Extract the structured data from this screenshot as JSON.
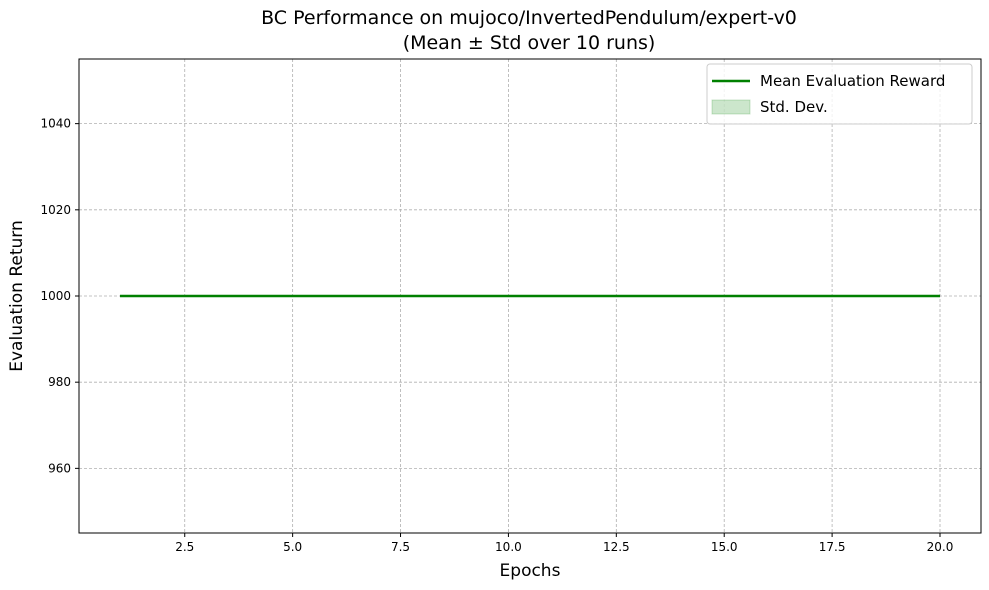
{
  "chart_data": {
    "type": "line",
    "title": "BC Performance on mujoco/InvertedPendulum/expert-v0",
    "subtitle": "(Mean ± Std over 10 runs)",
    "xlabel": "Epochs",
    "ylabel": "Evaluation Return",
    "xlim": [
      0.05,
      20.95
    ],
    "ylim": [
      945,
      1055
    ],
    "x_ticks": [
      2.5,
      5.0,
      7.5,
      10.0,
      12.5,
      15.0,
      17.5,
      20.0
    ],
    "x_tick_labels": [
      "2.5",
      "5.0",
      "7.5",
      "10.0",
      "12.5",
      "15.0",
      "17.5",
      "20.0"
    ],
    "y_ticks": [
      960,
      980,
      1000,
      1020,
      1040
    ],
    "y_tick_labels": [
      "960",
      "980",
      "1000",
      "1020",
      "1040"
    ],
    "grid": true,
    "legend_position": "top-right",
    "series": [
      {
        "name": "Mean Evaluation Reward",
        "color": "#008000",
        "x": [
          1,
          2,
          3,
          4,
          5,
          6,
          7,
          8,
          9,
          10,
          11,
          12,
          13,
          14,
          15,
          16,
          17,
          18,
          19,
          20
        ],
        "values": [
          1000,
          1000,
          1000,
          1000,
          1000,
          1000,
          1000,
          1000,
          1000,
          1000,
          1000,
          1000,
          1000,
          1000,
          1000,
          1000,
          1000,
          1000,
          1000,
          1000
        ]
      }
    ],
    "band": {
      "name": "Std. Dev.",
      "color": "#008000",
      "x": [
        1,
        2,
        3,
        4,
        5,
        6,
        7,
        8,
        9,
        10,
        11,
        12,
        13,
        14,
        15,
        16,
        17,
        18,
        19,
        20
      ],
      "lower": [
        1000,
        1000,
        1000,
        1000,
        1000,
        1000,
        1000,
        1000,
        1000,
        1000,
        1000,
        1000,
        1000,
        1000,
        1000,
        1000,
        1000,
        1000,
        1000,
        1000
      ],
      "upper": [
        1000,
        1000,
        1000,
        1000,
        1000,
        1000,
        1000,
        1000,
        1000,
        1000,
        1000,
        1000,
        1000,
        1000,
        1000,
        1000,
        1000,
        1000,
        1000,
        1000
      ]
    }
  }
}
